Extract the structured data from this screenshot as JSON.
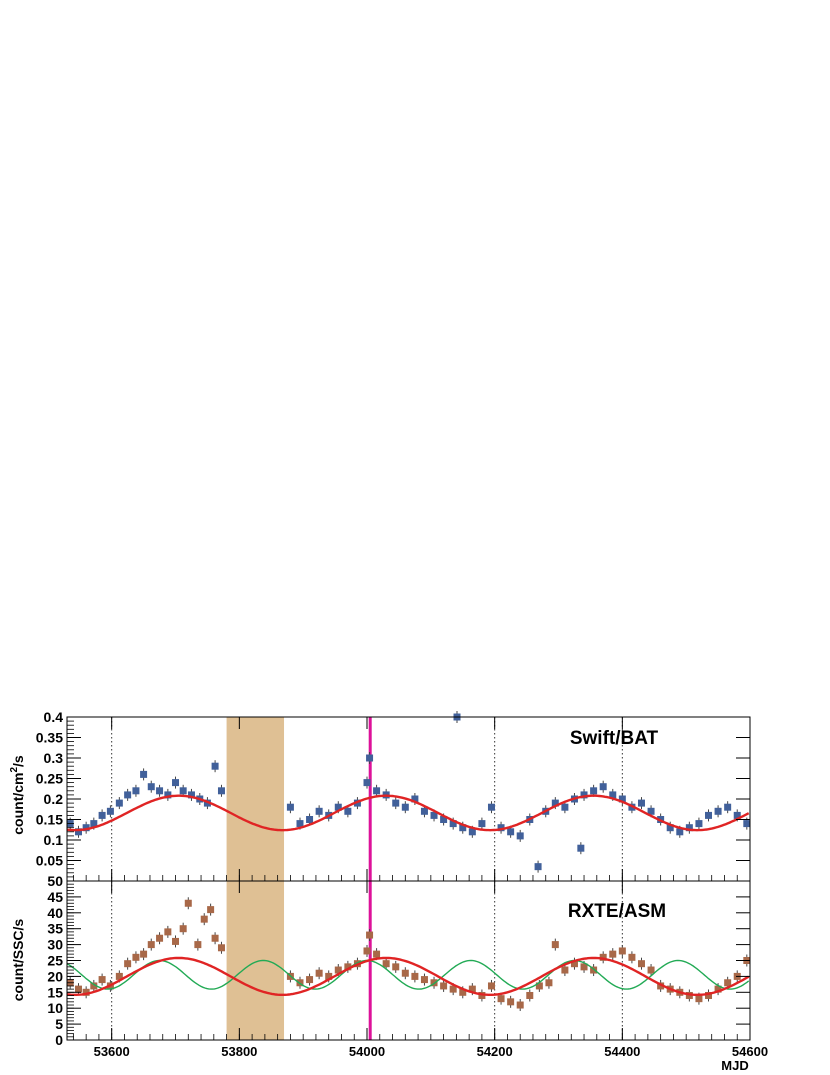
{
  "chart_data": [
    {
      "type": "scatter",
      "title": "",
      "annotation": "Swift/BAT",
      "ylabel": "count/cm²/s",
      "xlabel": "",
      "xlim": [
        53530,
        54600
      ],
      "ylim": [
        0,
        0.4
      ],
      "yticks": [
        0.05,
        0.1,
        0.15,
        0.2,
        0.25,
        0.3,
        0.35,
        0.4
      ],
      "ytick_labels": [
        "0.05",
        "0.1",
        "0.15",
        "0.2",
        "0.25",
        "0.3",
        "0.35",
        "0.4"
      ],
      "grid": false,
      "colors": {
        "points": "#41609a",
        "fit": "#e02424",
        "shaded_band": "#dfc094",
        "vline": "#dd1199",
        "dotted_lines": "#333333"
      },
      "shaded_band": [
        53780,
        53870
      ],
      "vline": 54005,
      "dotted_vlines": [
        53600,
        54200,
        54400
      ],
      "fit_curve": {
        "mean": 0.166,
        "amplitude": 0.042,
        "period": 325,
        "peak_at": 53705
      },
      "series": [
        {
          "x": [
            53535,
            53548,
            53560,
            53572,
            53585,
            53598,
            53612,
            53625,
            53638,
            53650,
            53662,
            53675,
            53688,
            53700,
            53712,
            53725,
            53738,
            53750,
            53762,
            53772,
            53880,
            53895,
            53910,
            53925,
            53940,
            53955,
            53970,
            53985,
            54000,
            54004,
            54015,
            54030,
            54045,
            54060,
            54075,
            54090,
            54105,
            54120,
            54135,
            54141,
            54150,
            54165,
            54180,
            54195,
            54210,
            54225,
            54240,
            54255,
            54268,
            54280,
            54295,
            54310,
            54325,
            54335,
            54340,
            54355,
            54370,
            54385,
            54400,
            54415,
            54430,
            54445,
            54460,
            54475,
            54490,
            54505,
            54520,
            54535,
            54550,
            54565,
            54580,
            54595
          ],
          "y": [
            0.14,
            0.12,
            0.13,
            0.14,
            0.16,
            0.17,
            0.19,
            0.21,
            0.22,
            0.26,
            0.23,
            0.22,
            0.21,
            0.24,
            0.22,
            0.21,
            0.2,
            0.19,
            0.28,
            0.22,
            0.18,
            0.14,
            0.15,
            0.17,
            0.16,
            0.18,
            0.17,
            0.19,
            0.24,
            0.3,
            0.22,
            0.21,
            0.19,
            0.18,
            0.2,
            0.17,
            0.16,
            0.15,
            0.14,
            0.4,
            0.13,
            0.12,
            0.14,
            0.18,
            0.13,
            0.12,
            0.11,
            0.15,
            0.035,
            0.17,
            0.19,
            0.18,
            0.2,
            0.08,
            0.21,
            0.22,
            0.23,
            0.21,
            0.2,
            0.18,
            0.19,
            0.17,
            0.15,
            0.13,
            0.12,
            0.13,
            0.14,
            0.16,
            0.17,
            0.18,
            0.16,
            0.14
          ]
        }
      ]
    },
    {
      "type": "scatter",
      "title": "",
      "annotation": "RXTE/ASM",
      "ylabel": "count/SSC/s",
      "xlabel": "MJD",
      "xlim": [
        53530,
        54600
      ],
      "ylim": [
        0,
        50
      ],
      "xticks": [
        53600,
        53800,
        54000,
        54200,
        54400,
        54600
      ],
      "xtick_labels": [
        "53600",
        "53800",
        "54000",
        "54200",
        "54400",
        "54600"
      ],
      "yticks": [
        0,
        5,
        10,
        15,
        20,
        25,
        30,
        35,
        40,
        45,
        50
      ],
      "ytick_labels": [
        "0",
        "5",
        "10",
        "15",
        "20",
        "25",
        "30",
        "35",
        "40",
        "45",
        "50"
      ],
      "grid": false,
      "colors": {
        "points": "#a86848",
        "fit": "#e02424",
        "fit2": "#22aa55",
        "shaded_band": "#dfc094",
        "vline": "#dd1199",
        "dotted_lines": "#333333"
      },
      "shaded_band": [
        53780,
        53870
      ],
      "vline": 54005,
      "dotted_vlines": [
        53600,
        54200,
        54400
      ],
      "fit_curve": {
        "mean": 20.0,
        "amplitude": 5.8,
        "period": 325,
        "peak_at": 53705
      },
      "fit_curve_2": {
        "mean": 20.5,
        "amplitude": 4.5,
        "period": 162.5,
        "peak_at": 53675
      },
      "series": [
        {
          "x": [
            53535,
            53548,
            53560,
            53572,
            53585,
            53598,
            53612,
            53625,
            53638,
            53650,
            53662,
            53675,
            53688,
            53700,
            53712,
            53720,
            53735,
            53745,
            53755,
            53762,
            53772,
            53880,
            53895,
            53910,
            53925,
            53940,
            53955,
            53970,
            53985,
            54000,
            54004,
            54015,
            54030,
            54045,
            54060,
            54075,
            54090,
            54105,
            54120,
            54135,
            54150,
            54165,
            54180,
            54195,
            54210,
            54225,
            54240,
            54255,
            54270,
            54285,
            54295,
            54310,
            54325,
            54340,
            54355,
            54370,
            54385,
            54400,
            54415,
            54430,
            54445,
            54460,
            54475,
            54490,
            54505,
            54520,
            54535,
            54550,
            54565,
            54580,
            54595
          ],
          "y": [
            18,
            16,
            15,
            17,
            19,
            17,
            20,
            24,
            26,
            27,
            30,
            32,
            34,
            31,
            35,
            43,
            30,
            38,
            41,
            32,
            29,
            20,
            18,
            19,
            21,
            20,
            22,
            23,
            24,
            28,
            33,
            27,
            24,
            23,
            21,
            20,
            19,
            18,
            17,
            16,
            15,
            16,
            14,
            17,
            13,
            12,
            11,
            14,
            17,
            18,
            30,
            22,
            24,
            23,
            22,
            26,
            27,
            28,
            26,
            24,
            22,
            17,
            16,
            15,
            14,
            13,
            14,
            16,
            18,
            20,
            25
          ]
        }
      ]
    }
  ]
}
